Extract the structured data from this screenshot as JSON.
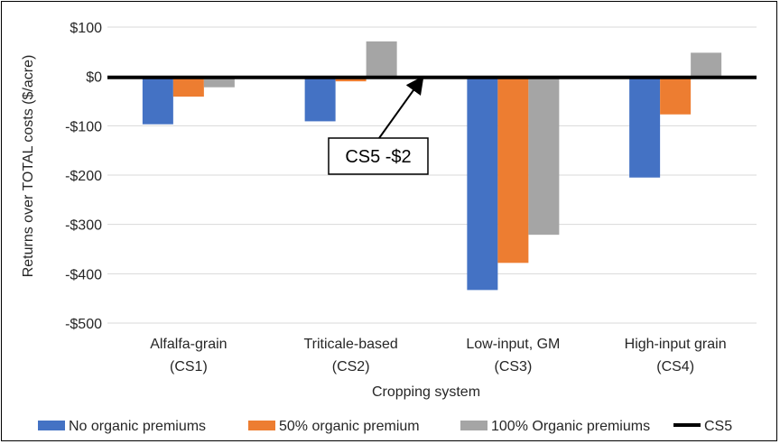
{
  "chart_data": {
    "type": "bar",
    "xlabel": "Cropping system",
    "ylabel": "Returns over TOTAL costs ($/acre)",
    "ylim": [
      -500,
      100
    ],
    "yticks": [
      100,
      0,
      -100,
      -200,
      -300,
      -400,
      -500
    ],
    "ytick_labels": [
      "$100",
      "$0",
      "-$100",
      "-$200",
      "-$300",
      "-$400",
      "-$500"
    ],
    "categories": [
      [
        "Alfalfa-grain",
        "(CS1)"
      ],
      [
        "Triticale-based",
        "(CS2)"
      ],
      [
        "Low-input, GM",
        "(CS3)"
      ],
      [
        "High-input grain",
        "(CS4)"
      ]
    ],
    "series": [
      {
        "name": "No organic premiums",
        "color": "#4472C4",
        "values": [
          -97,
          -91,
          -433,
          -205
        ]
      },
      {
        "name": "50% organic premium",
        "color": "#ED7D31",
        "values": [
          -41,
          -10,
          -378,
          -77
        ]
      },
      {
        "name": "100% Organic premiums",
        "color": "#A5A5A5",
        "values": [
          -22,
          71,
          -321,
          48
        ]
      }
    ],
    "reference_line": {
      "name": "CS5",
      "value": -2,
      "color": "#000000"
    },
    "annotation": {
      "text": "CS5 -$2"
    },
    "grid": true,
    "legend_position": "bottom"
  }
}
